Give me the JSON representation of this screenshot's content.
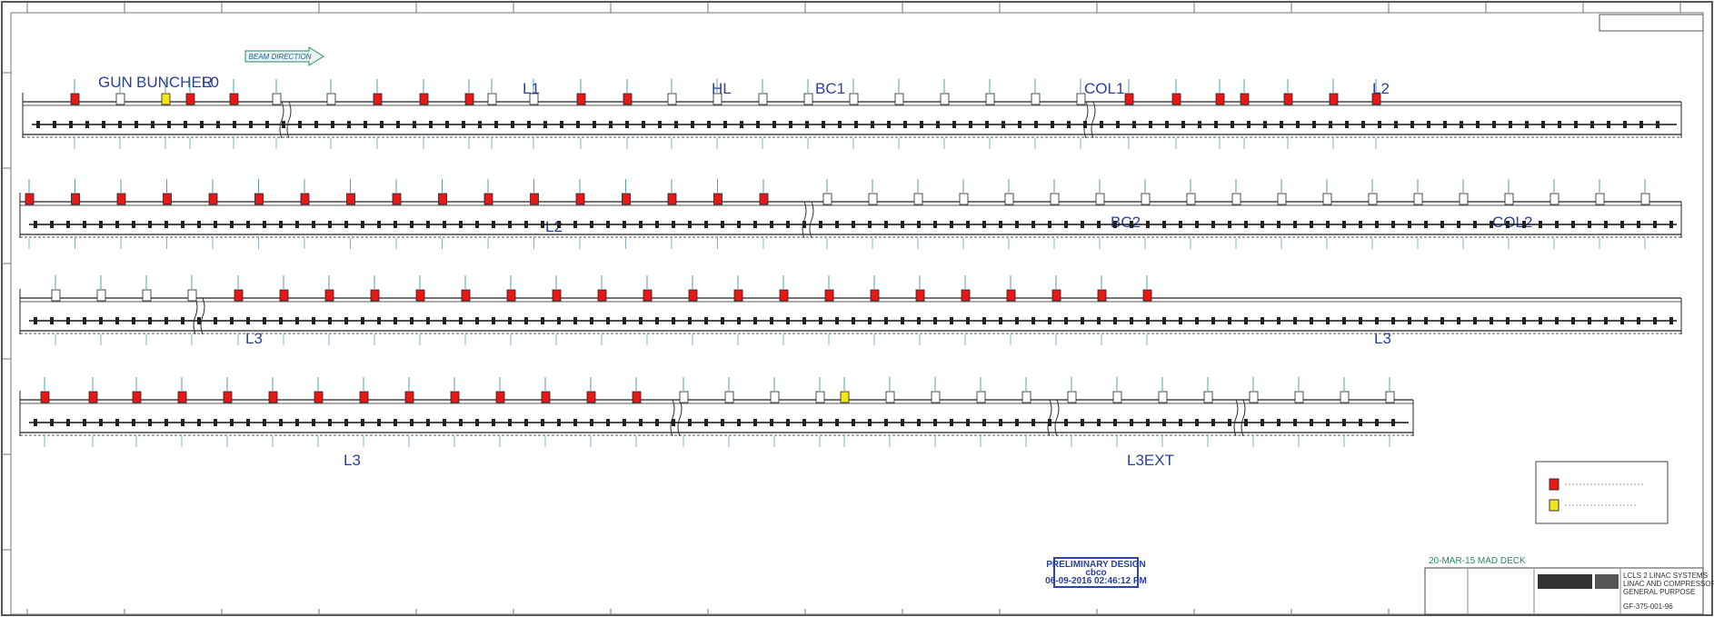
{
  "header": {
    "beam_direction": "BEAM DIRECTION"
  },
  "sections": {
    "row1": [
      "GUN",
      "BUNCHER",
      "L0",
      "L1",
      "HL",
      "BC1",
      "COL1",
      "L2"
    ],
    "row2": [
      "L2",
      "BC2",
      "COL2"
    ],
    "row3": [
      "L3",
      "L3"
    ],
    "row4": [
      "L3",
      "L3EXT"
    ]
  },
  "stamp": {
    "title": "PRELIMINARY DESIGN",
    "user": "cbco",
    "timestamp": "06-09-2016 02:46:12 PM"
  },
  "title_block": {
    "deck": "20-MAR-15 MAD DECK",
    "lines": [
      "LCLS 2 LINAC SYSTEMS",
      "LINAC AND COMPRESSOR",
      "GENERAL PURPOSE"
    ],
    "drawing_number": "GF-375-001-96"
  }
}
